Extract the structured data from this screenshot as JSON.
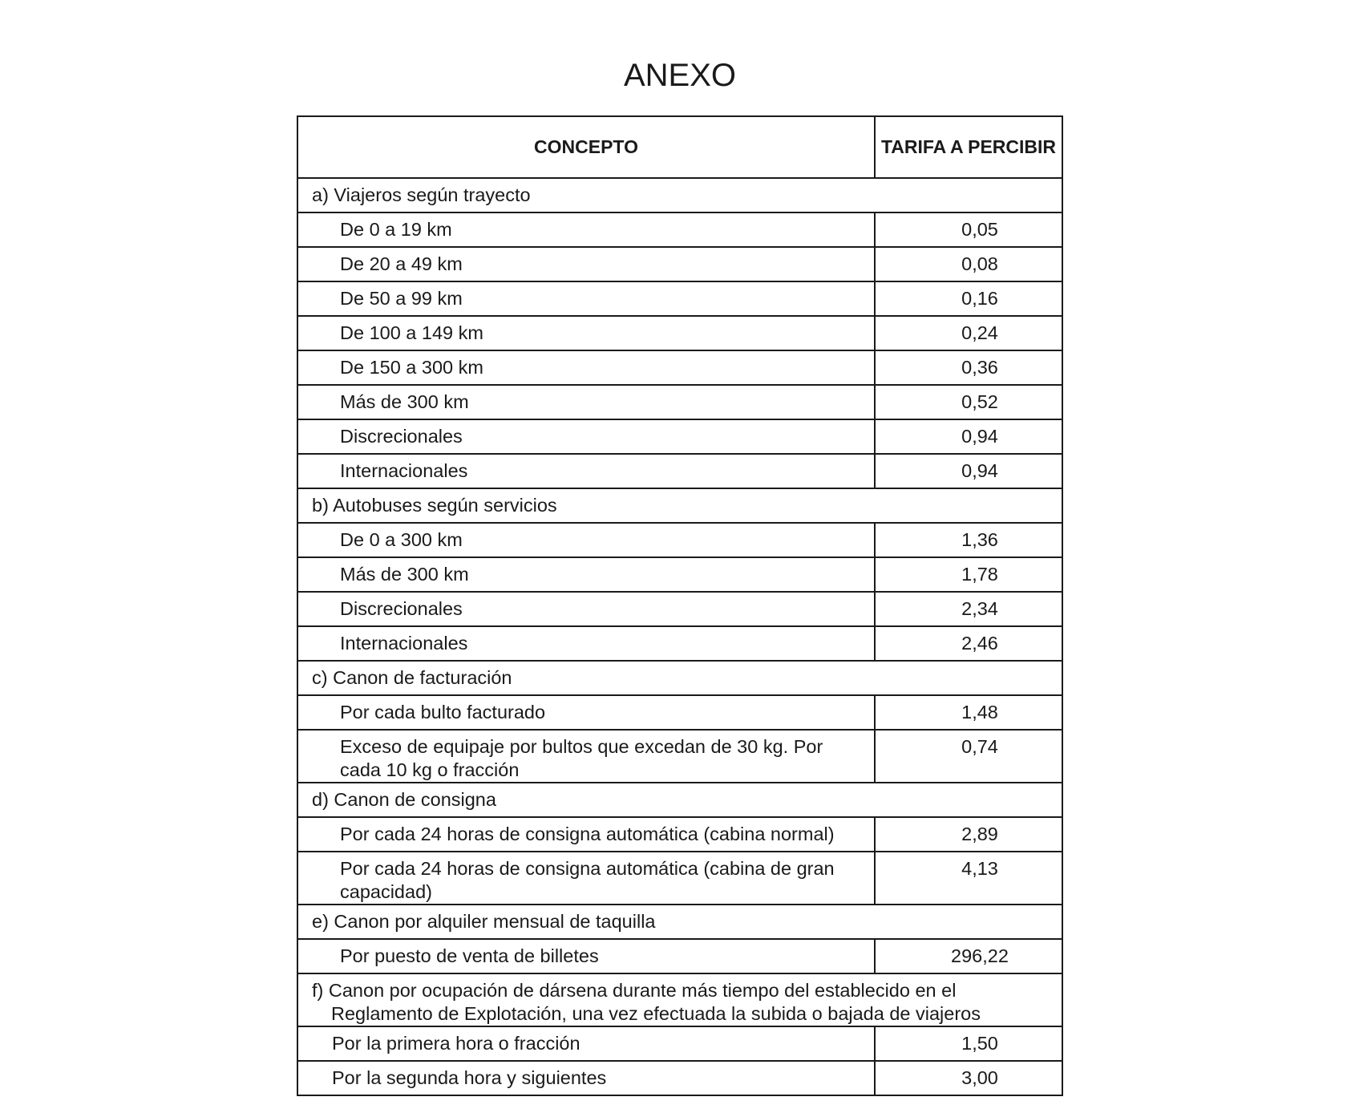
{
  "title": "ANEXO",
  "table": {
    "header": [
      "CONCEPTO",
      "TARIFA A PERCIBIR"
    ],
    "rows": [
      [
        "a) Viajeros según trayecto"
      ],
      [
        "De 0 a 19 km",
        "0,05"
      ],
      [
        "De 20 a 49 km",
        "0,08"
      ],
      [
        "De 50 a 99 km",
        "0,16"
      ],
      [
        "De 100 a 149 km",
        "0,24"
      ],
      [
        "De 150 a 300 km",
        "0,36"
      ],
      [
        "Más de 300 km",
        "0,52"
      ],
      [
        "Discrecionales",
        "0,94"
      ],
      [
        "Internacionales",
        "0,94"
      ],
      [
        "b) Autobuses según servicios"
      ],
      [
        "De 0 a 300 km",
        "1,36"
      ],
      [
        "Más de 300 km",
        "1,78"
      ],
      [
        "Discrecionales",
        "2,34"
      ],
      [
        "Internacionales",
        "2,46"
      ],
      [
        "c) Canon de facturación"
      ],
      [
        "Por cada bulto facturado",
        "1,48"
      ],
      [
        "Exceso de equipaje por bultos que excedan de 30 kg. Por cada 10 kg o fracción",
        "0,74"
      ],
      [
        "d) Canon de consigna"
      ],
      [
        "Por cada 24 horas de consigna automática (cabina normal)",
        "2,89"
      ],
      [
        "Por cada 24 horas de consigna automática (cabina de gran capacidad)",
        "4,13"
      ],
      [
        "e) Canon por alquiler mensual de taquilla"
      ],
      [
        "Por puesto de venta de billetes",
        "296,22"
      ],
      [
        "f) Canon por ocupación de dársena durante más tiempo del establecido en el Reglamento de Explotación, una vez efectuada la subida o bajada de viajeros"
      ],
      [
        "Por la primera hora o fracción",
        "1,50"
      ],
      [
        "Por la segunda hora y siguientes",
        "3,00"
      ]
    ]
  }
}
